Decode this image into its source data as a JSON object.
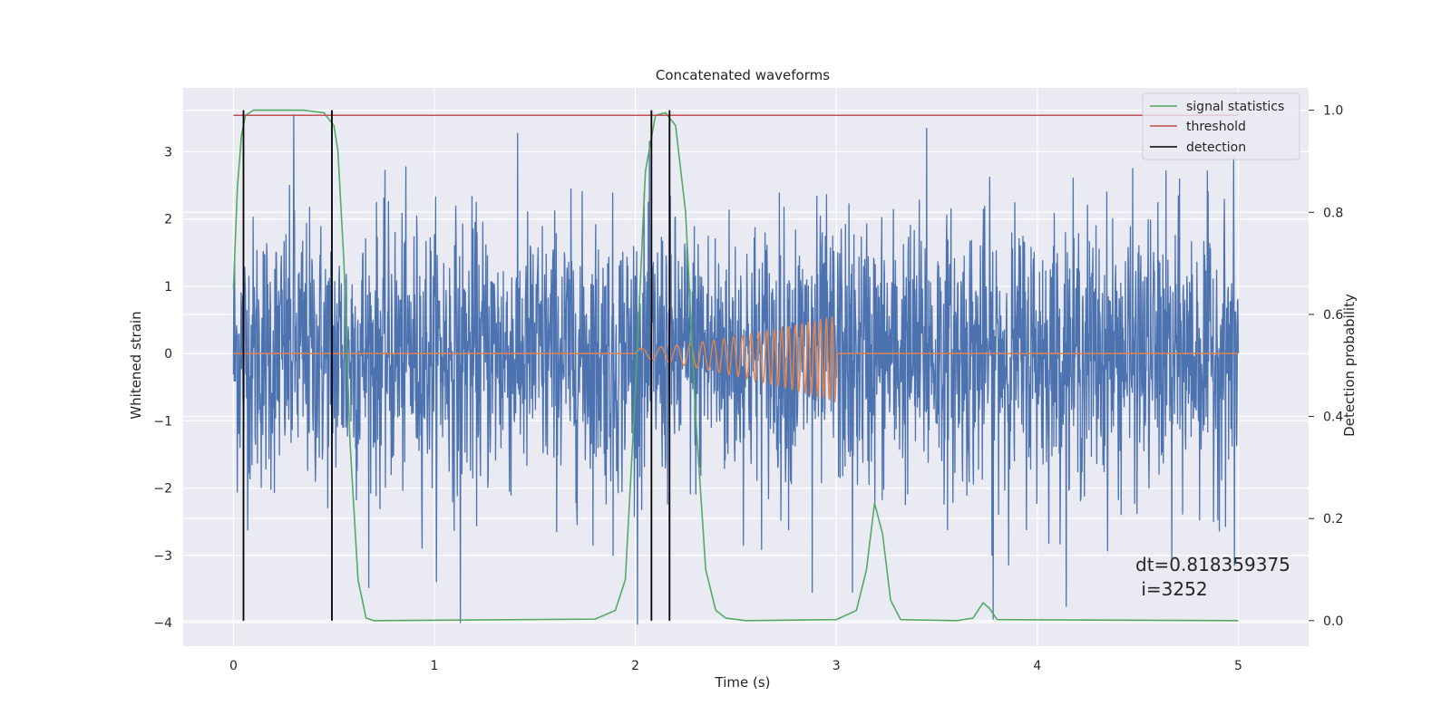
{
  "chart_data": {
    "type": "line",
    "title": "Concatenated waveforms",
    "xlabel": "Time (s)",
    "ylabel": "Whitened strain",
    "ylabel_right": "Detection probability",
    "xlim": [
      -0.25,
      5.35
    ],
    "ylim": [
      -4.35,
      3.95
    ],
    "ylim_right": [
      -0.05,
      1.0437
    ],
    "x_ticks": [
      0,
      1,
      2,
      3,
      4,
      5
    ],
    "y_ticks": [
      -4,
      -3,
      -2,
      -1,
      0,
      1,
      2,
      3
    ],
    "y_ticks_right": [
      0.0,
      0.2,
      0.4,
      0.6,
      0.8,
      1.0
    ],
    "x_tick_labels": [
      "0",
      "1",
      "2",
      "3",
      "4",
      "5"
    ],
    "y_tick_labels": [
      "−4",
      "−3",
      "−2",
      "−1",
      "0",
      "1",
      "2",
      "3"
    ],
    "y_tick_labels_right": [
      "0.0",
      "0.2",
      "0.4",
      "0.6",
      "0.8",
      "1.0"
    ],
    "grid": true,
    "legend_position": "top-right",
    "legend": [
      {
        "label": "signal statistics",
        "color": "#55a868"
      },
      {
        "label": "threshold",
        "color": "#c44e52"
      },
      {
        "label": "detection",
        "color": "#000000"
      }
    ],
    "series": [
      {
        "name": "",
        "axis": "left",
        "color": "#4c72b0",
        "description_kind": "noise",
        "x_range": [
          0,
          5
        ],
        "notable_peaks": [
          [
            0.3,
            3.55
          ],
          [
            1.13,
            -4.0
          ],
          [
            1.89,
            -3.0
          ],
          [
            2.88,
            -3.55
          ],
          [
            3.08,
            -3.55
          ],
          [
            3.45,
            3.35
          ],
          [
            3.78,
            -3.95
          ],
          [
            4.67,
            -3.05
          ],
          [
            4.98,
            -3.15
          ]
        ]
      },
      {
        "name": "",
        "axis": "left",
        "color": "#dd8452",
        "chirp_start": 2.0,
        "chirp_end": 3.0,
        "chirp_peak_amplitude": 0.65,
        "x_range": [
          0,
          5
        ]
      },
      {
        "name": "signal statistics",
        "axis": "right",
        "color": "#55a868",
        "x": [
          0,
          0.02,
          0.04,
          0.06,
          0.1,
          0.2,
          0.35,
          0.45,
          0.5,
          0.52,
          0.55,
          0.58,
          0.62,
          0.66,
          0.7,
          1.8,
          1.9,
          1.95,
          2.0,
          2.05,
          2.1,
          2.15,
          2.2,
          2.25,
          2.3,
          2.35,
          2.4,
          2.45,
          2.55,
          3.0,
          3.1,
          3.15,
          3.19,
          3.23,
          3.27,
          3.32,
          3.6,
          3.68,
          3.73,
          3.76,
          3.8,
          5.0
        ],
        "y": [
          0.65,
          0.85,
          0.95,
          0.99,
          1.0,
          1.0,
          1.0,
          0.995,
          0.97,
          0.92,
          0.7,
          0.35,
          0.08,
          0.005,
          0.0,
          0.003,
          0.02,
          0.08,
          0.45,
          0.88,
          0.99,
          0.995,
          0.97,
          0.8,
          0.4,
          0.1,
          0.02,
          0.005,
          0.0,
          0.002,
          0.02,
          0.1,
          0.23,
          0.17,
          0.04,
          0.002,
          0.0,
          0.005,
          0.035,
          0.025,
          0.002,
          0.0
        ]
      },
      {
        "name": "threshold",
        "axis": "right",
        "color": "#c44e52",
        "x": [
          0,
          5
        ],
        "y": [
          0.99,
          0.99
        ]
      }
    ],
    "detections": {
      "name": "detection",
      "color": "#000000",
      "x": [
        0.05,
        0.49,
        2.08,
        2.17
      ],
      "y_range": [
        0.0,
        1.0
      ]
    },
    "annotation": "dt=0.818359375\n i=3252",
    "annotation_lines": [
      "dt=0.818359375",
      " i=3252"
    ],
    "colors": {
      "axes_background": "#eaeaf2",
      "grid": "#ffffff",
      "text": "#262626"
    }
  }
}
